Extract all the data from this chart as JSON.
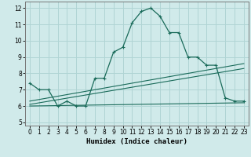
{
  "xlabel": "Humidex (Indice chaleur)",
  "xlim": [
    -0.5,
    23.5
  ],
  "ylim": [
    4.8,
    12.4
  ],
  "yticks": [
    5,
    6,
    7,
    8,
    9,
    10,
    11,
    12
  ],
  "xticks": [
    0,
    1,
    2,
    3,
    4,
    5,
    6,
    7,
    8,
    9,
    10,
    11,
    12,
    13,
    14,
    15,
    16,
    17,
    18,
    19,
    20,
    21,
    22,
    23
  ],
  "bg_color": "#d0eaea",
  "grid_color": "#b0d4d4",
  "line_color": "#1a6b5a",
  "curve_x": [
    0,
    1,
    2,
    3,
    4,
    5,
    6,
    7,
    8,
    9,
    10,
    11,
    12,
    13,
    14,
    15,
    16,
    17,
    18,
    19,
    20,
    21,
    22,
    23
  ],
  "curve_y": [
    7.4,
    7.0,
    7.0,
    6.0,
    6.3,
    6.0,
    6.0,
    7.7,
    7.7,
    9.3,
    9.6,
    11.1,
    11.8,
    12.0,
    11.5,
    10.5,
    10.5,
    9.0,
    9.0,
    8.5,
    8.5,
    6.5,
    6.3,
    6.3
  ],
  "line2_x": [
    0,
    23
  ],
  "line2_y": [
    6.3,
    8.6
  ],
  "line3_x": [
    0,
    23
  ],
  "line3_y": [
    6.1,
    8.3
  ],
  "line4_x": [
    0,
    23
  ],
  "line4_y": [
    6.0,
    6.2
  ]
}
